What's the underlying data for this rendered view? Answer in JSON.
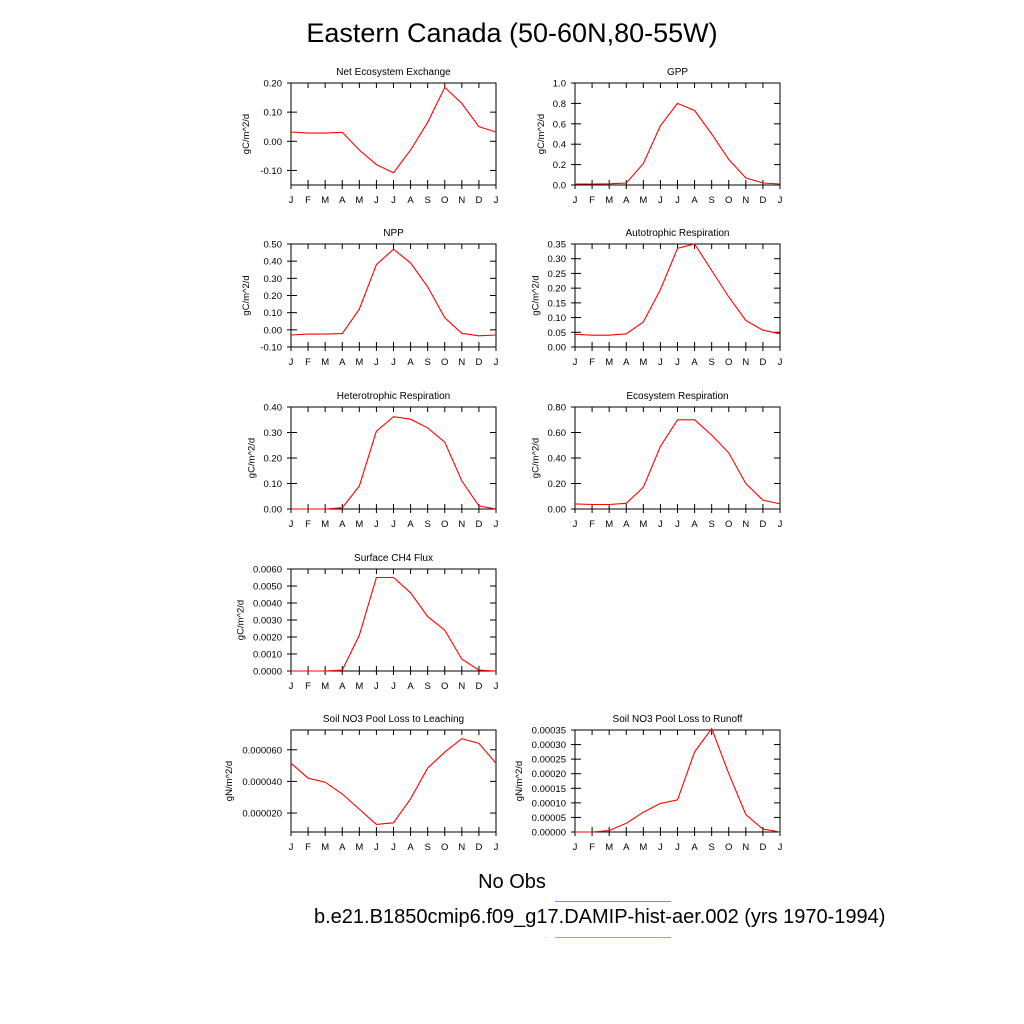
{
  "figure": {
    "title": "Eastern Canada (50-60N,80-55W)",
    "legend": [
      {
        "label": "No Obs",
        "color": "#8080ff"
      },
      {
        "label": "b.e21.B1850cmip6.f09_g17.DAMIP-hist-aer.002 (yrs 1970-1994)",
        "color": "#ff8080"
      }
    ],
    "line_color": "#ff0000"
  },
  "chart_data": [
    {
      "type": "line",
      "title": "Net Ecosystem Exchange",
      "ylabel": "gC/m^2/d",
      "categories": [
        "J",
        "F",
        "M",
        "A",
        "M",
        "J",
        "J",
        "A",
        "S",
        "O",
        "N",
        "D",
        "J"
      ],
      "values": [
        0.032,
        0.028,
        0.028,
        0.031,
        -0.03,
        -0.08,
        -0.108,
        -0.03,
        0.065,
        0.185,
        0.13,
        0.05,
        0.032
      ],
      "ylim": [
        -0.15,
        0.2
      ],
      "yticks": [
        "-0.10",
        "0.00",
        "0.10",
        "0.20"
      ],
      "ytick_values": [
        -0.1,
        0,
        0.1,
        0.2
      ]
    },
    {
      "type": "line",
      "title": "GPP",
      "ylabel": "gC/m^2/d",
      "categories": [
        "J",
        "F",
        "M",
        "A",
        "M",
        "J",
        "J",
        "A",
        "S",
        "O",
        "N",
        "D",
        "J"
      ],
      "values": [
        0.01,
        0.01,
        0.012,
        0.02,
        0.21,
        0.58,
        0.8,
        0.73,
        0.5,
        0.25,
        0.07,
        0.02,
        0.01
      ],
      "ylim": [
        0,
        1.0
      ],
      "yticks": [
        "0.0",
        "0.2",
        "0.4",
        "0.6",
        "0.8",
        "1.0"
      ],
      "ytick_values": [
        0,
        0.2,
        0.4,
        0.6,
        0.8,
        1.0
      ]
    },
    {
      "type": "line",
      "title": "NPP",
      "ylabel": "gC/m^2/d",
      "categories": [
        "J",
        "F",
        "M",
        "A",
        "M",
        "J",
        "J",
        "A",
        "S",
        "O",
        "N",
        "D",
        "J"
      ],
      "values": [
        -0.03,
        -0.025,
        -0.025,
        -0.022,
        0.12,
        0.38,
        0.47,
        0.39,
        0.25,
        0.07,
        -0.02,
        -0.035,
        -0.03
      ],
      "ylim": [
        -0.1,
        0.5
      ],
      "yticks": [
        "-0.10",
        "0.00",
        "0.10",
        "0.20",
        "0.30",
        "0.40",
        "0.50"
      ],
      "ytick_values": [
        -0.1,
        0,
        0.1,
        0.2,
        0.3,
        0.4,
        0.5
      ]
    },
    {
      "type": "line",
      "title": "Autotrophic Respiration",
      "ylabel": "gC/m^2/d",
      "categories": [
        "J",
        "F",
        "M",
        "A",
        "M",
        "J",
        "J",
        "A",
        "S",
        "O",
        "N",
        "D",
        "J"
      ],
      "values": [
        0.043,
        0.04,
        0.04,
        0.045,
        0.085,
        0.195,
        0.335,
        0.35,
        0.26,
        0.17,
        0.09,
        0.057,
        0.045
      ],
      "ylim": [
        0,
        0.35
      ],
      "yticks": [
        "0.00",
        "0.05",
        "0.10",
        "0.15",
        "0.20",
        "0.25",
        "0.30",
        "0.35"
      ],
      "ytick_values": [
        0,
        0.05,
        0.1,
        0.15,
        0.2,
        0.25,
        0.3,
        0.35
      ]
    },
    {
      "type": "line",
      "title": "Heterotrophic Respiration",
      "ylabel": "gC/m^2/d",
      "categories": [
        "J",
        "F",
        "M",
        "A",
        "M",
        "J",
        "J",
        "A",
        "S",
        "O",
        "N",
        "D",
        "J"
      ],
      "values": [
        0.0,
        0.0,
        0.0,
        0.005,
        0.09,
        0.305,
        0.362,
        0.352,
        0.318,
        0.262,
        0.11,
        0.012,
        0.0
      ],
      "ylim": [
        0,
        0.4
      ],
      "yticks": [
        "0.00",
        "0.10",
        "0.20",
        "0.30",
        "0.40"
      ],
      "ytick_values": [
        0,
        0.1,
        0.2,
        0.3,
        0.4
      ]
    },
    {
      "type": "line",
      "title": "Ecosystem Respiration",
      "ylabel": "gC/m^2/d",
      "categories": [
        "J",
        "F",
        "M",
        "A",
        "M",
        "J",
        "J",
        "A",
        "S",
        "O",
        "N",
        "D",
        "J"
      ],
      "values": [
        0.04,
        0.035,
        0.035,
        0.045,
        0.17,
        0.49,
        0.7,
        0.7,
        0.58,
        0.44,
        0.2,
        0.07,
        0.04
      ],
      "ylim": [
        0,
        0.8
      ],
      "yticks": [
        "0.00",
        "0.20",
        "0.40",
        "0.60",
        "0.80"
      ],
      "ytick_values": [
        0,
        0.2,
        0.4,
        0.6,
        0.8
      ]
    },
    {
      "type": "line",
      "title": "Surface CH4 Flux",
      "ylabel": "gC/m^2/d",
      "categories": [
        "J",
        "F",
        "M",
        "A",
        "M",
        "J",
        "J",
        "A",
        "S",
        "O",
        "N",
        "D",
        "J"
      ],
      "values": [
        0.0,
        0.0,
        0.0,
        5e-05,
        0.0021,
        0.0055,
        0.0055,
        0.0046,
        0.0032,
        0.0024,
        0.0007,
        5e-05,
        0.0
      ],
      "ylim": [
        0,
        0.006
      ],
      "yticks": [
        "0.0000",
        "0.0010",
        "0.0020",
        "0.0030",
        "0.0040",
        "0.0050",
        "0.0060"
      ],
      "ytick_values": [
        0,
        0.001,
        0.002,
        0.003,
        0.004,
        0.005,
        0.006
      ]
    },
    {
      "type": "line",
      "title": "Soil NO3 Pool Loss to Leaching",
      "ylabel": "gN/m^2/d",
      "categories": [
        "J",
        "F",
        "M",
        "A",
        "M",
        "J",
        "J",
        "A",
        "S",
        "O",
        "N",
        "D",
        "J"
      ],
      "values": [
        5.15e-05,
        4.2e-05,
        3.95e-05,
        3.2e-05,
        2.25e-05,
        1.28e-05,
        1.38e-05,
        2.9e-05,
        4.85e-05,
        5.85e-05,
        6.7e-05,
        6.4e-05,
        5.15e-05
      ],
      "ylim": [
        8e-06,
        7.25e-05
      ],
      "yticks": [
        "0.000020",
        "0.000040",
        "0.000060"
      ],
      "ytick_values": [
        2e-05,
        4e-05,
        6e-05
      ]
    },
    {
      "type": "line",
      "title": "Soil NO3 Pool Loss to Runoff",
      "ylabel": "gN/m^2/d",
      "categories": [
        "J",
        "F",
        "M",
        "A",
        "M",
        "J",
        "J",
        "A",
        "S",
        "O",
        "N",
        "D",
        "J"
      ],
      "values": [
        0.0,
        0.0,
        5e-06,
        3e-05,
        6.8e-05,
        9.8e-05,
        0.00011,
        0.000275,
        0.000355,
        0.0002,
        6e-05,
        1e-05,
        0.0
      ],
      "ylim": [
        0,
        0.00035
      ],
      "yticks": [
        "0.00000",
        "0.00005",
        "0.00010",
        "0.00015",
        "0.00020",
        "0.00025",
        "0.00030",
        "0.00035"
      ],
      "ytick_values": [
        0,
        5e-05,
        0.0001,
        0.00015,
        0.0002,
        0.00025,
        0.0003,
        0.00035
      ]
    }
  ]
}
